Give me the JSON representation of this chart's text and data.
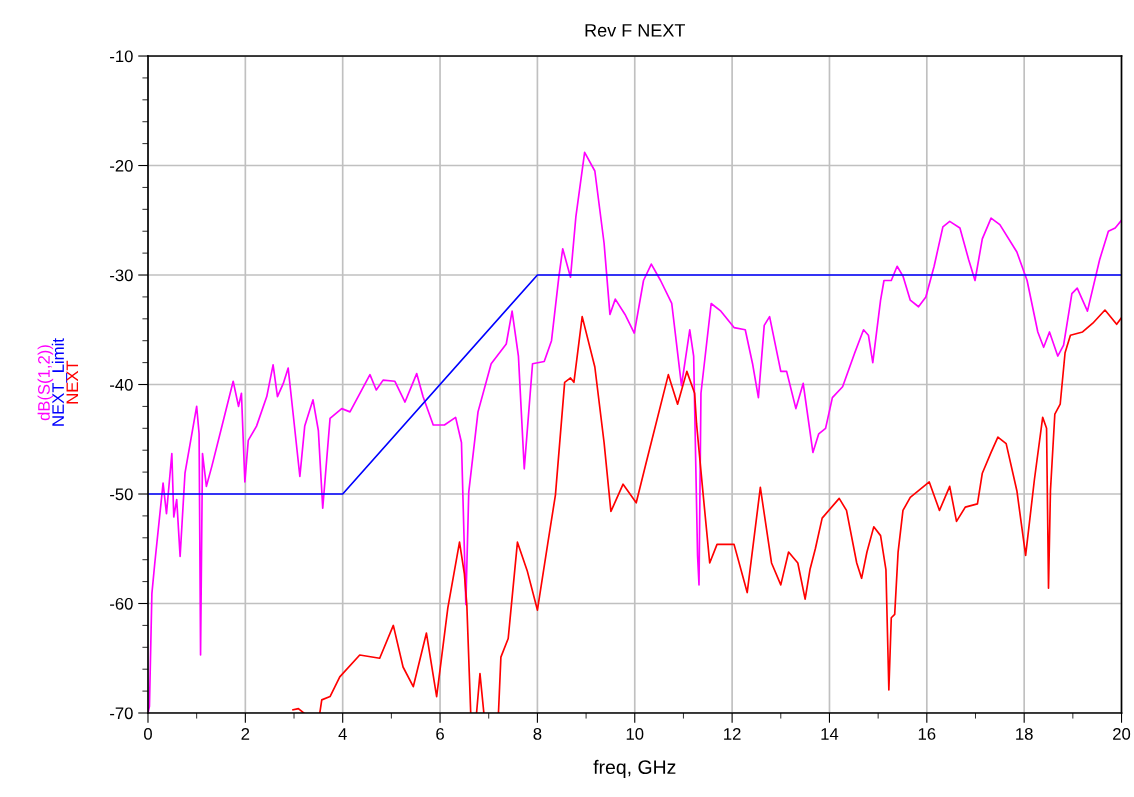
{
  "chart_data": {
    "type": "line",
    "title": "Rev F NEXT",
    "xlabel": "freq, GHz",
    "xlim": [
      0,
      20
    ],
    "xticks": [
      0,
      {
        "value": 1,
        "label": null
      },
      2,
      {
        "value": 3,
        "label": null
      },
      4,
      {
        "value": 5,
        "label": null
      },
      6,
      {
        "value": 7,
        "label": null
      },
      8,
      {
        "value": 9,
        "label": null
      },
      10,
      {
        "value": 11,
        "label": null
      },
      12,
      {
        "value": 13,
        "label": null
      },
      14,
      {
        "value": 15,
        "label": null
      },
      16,
      {
        "value": 17,
        "label": null
      },
      18,
      {
        "value": 19,
        "label": null
      },
      20
    ],
    "ylim": [
      -70,
      -10
    ],
    "yticks": [
      -70,
      {
        "value": -68,
        "label": null
      },
      {
        "value": -66,
        "label": null
      },
      {
        "value": -64,
        "label": null
      },
      {
        "value": -62,
        "label": null
      },
      -60,
      {
        "value": -58,
        "label": null
      },
      {
        "value": -56,
        "label": null
      },
      {
        "value": -54,
        "label": null
      },
      {
        "value": -52,
        "label": null
      },
      -50,
      {
        "value": -48,
        "label": null
      },
      {
        "value": -46,
        "label": null
      },
      {
        "value": -44,
        "label": null
      },
      {
        "value": -42,
        "label": null
      },
      -40,
      {
        "value": -38,
        "label": null
      },
      {
        "value": -36,
        "label": null
      },
      {
        "value": -34,
        "label": null
      },
      {
        "value": -32,
        "label": null
      },
      -30,
      {
        "value": -28,
        "label": null
      },
      {
        "value": -26,
        "label": null
      },
      {
        "value": -24,
        "label": null
      },
      {
        "value": -22,
        "label": null
      },
      -20,
      {
        "value": -18,
        "label": null
      },
      {
        "value": -16,
        "label": null
      },
      {
        "value": -14,
        "label": null
      },
      {
        "value": -12,
        "label": null
      },
      -10
    ],
    "grid": true,
    "line_style": "solid",
    "marker": "none",
    "series": [
      {
        "name": "dB(S(1,2))",
        "color": "#ff00ff",
        "x": [
          0.0,
          0.03,
          0.08,
          0.14,
          0.31,
          0.38,
          0.49,
          0.53,
          0.59,
          0.66,
          0.76,
          1.0,
          1.05,
          1.08,
          1.12,
          1.2,
          1.31,
          1.48,
          1.75,
          1.86,
          1.92,
          1.99,
          2.06,
          2.23,
          2.44,
          2.57,
          2.66,
          2.78,
          2.88,
          2.98,
          3.12,
          3.22,
          3.39,
          3.5,
          3.59,
          3.74,
          3.98,
          4.15,
          4.56,
          4.69,
          4.83,
          5.07,
          5.28,
          5.52,
          5.65,
          5.86,
          6.09,
          6.32,
          6.44,
          6.53,
          6.59,
          6.78,
          7.05,
          7.36,
          7.48,
          7.61,
          7.73,
          7.9,
          8.14,
          8.29,
          8.44,
          8.52,
          8.68,
          8.79,
          8.97,
          9.18,
          9.37,
          9.49,
          9.6,
          9.8,
          9.99,
          10.18,
          10.34,
          10.53,
          10.76,
          10.96,
          11.13,
          11.21,
          11.29,
          11.32,
          11.36,
          11.57,
          11.77,
          12.04,
          12.27,
          12.42,
          12.54,
          12.66,
          12.77,
          13.0,
          13.12,
          13.31,
          13.46,
          13.66,
          13.78,
          13.92,
          14.06,
          14.27,
          14.52,
          14.7,
          14.8,
          14.89,
          15.05,
          15.12,
          15.27,
          15.39,
          15.51,
          15.66,
          15.83,
          15.98,
          16.15,
          16.33,
          16.47,
          16.68,
          16.86,
          16.99,
          17.14,
          17.32,
          17.5,
          17.85,
          18.06,
          18.28,
          18.4,
          18.52,
          18.69,
          18.81,
          18.98,
          19.09,
          19.3,
          19.55,
          19.73,
          19.87,
          20.0
        ],
        "values": [
          -70,
          -69.4,
          -59.1,
          -56.3,
          -49,
          -51.8,
          -46.3,
          -52.1,
          -50.5,
          -55.7,
          -48.1,
          -42,
          -44.5,
          -64.7,
          -46.3,
          -49.3,
          -47.5,
          -44.5,
          -39.7,
          -42,
          -40.8,
          -48.9,
          -45.1,
          -43.8,
          -41.1,
          -38.2,
          -41.1,
          -39.9,
          -38.5,
          -42.6,
          -48.4,
          -43.8,
          -41.4,
          -44.2,
          -51.3,
          -43.1,
          -42.2,
          -42.5,
          -39.1,
          -40.5,
          -39.6,
          -39.7,
          -41.6,
          -39,
          -41.1,
          -43.7,
          -43.7,
          -43,
          -45.3,
          -60.1,
          -49.8,
          -42.5,
          -38.1,
          -36.3,
          -33.3,
          -37.4,
          -47.7,
          -38.1,
          -37.9,
          -36,
          -30.2,
          -27.6,
          -30.2,
          -24.7,
          -18.8,
          -20.5,
          -27.1,
          -33.6,
          -32.2,
          -33.6,
          -35.3,
          -30.5,
          -29,
          -30.5,
          -32.6,
          -40.1,
          -35,
          -37.4,
          -55.6,
          -58.3,
          -40.8,
          -32.6,
          -33.3,
          -34.8,
          -35,
          -38.1,
          -41.2,
          -34.6,
          -33.8,
          -38.8,
          -38.8,
          -42.2,
          -39.9,
          -46.2,
          -44.5,
          -44,
          -41.2,
          -40.2,
          -37.1,
          -35,
          -35.5,
          -38,
          -32.3,
          -30.5,
          -30.5,
          -29.2,
          -30.1,
          -32.3,
          -32.9,
          -32,
          -29.2,
          -25.6,
          -25.1,
          -25.7,
          -28.6,
          -30.5,
          -26.7,
          -24.8,
          -25.4,
          -27.9,
          -30.5,
          -35.2,
          -36.6,
          -35.2,
          -37.4,
          -36.4,
          -31.7,
          -31.2,
          -33.3,
          -28.6,
          -26.0,
          -25.7,
          -25.0
        ]
      },
      {
        "name": "NEXT_Limit",
        "color": "#0000ff",
        "x": [
          0,
          4,
          8,
          20
        ],
        "values": [
          -50,
          -50,
          -30,
          -30
        ]
      },
      {
        "name": "NEXT",
        "color": "#ff0000",
        "x": [
          2.98,
          3.09,
          3.2,
          3.35,
          3.53,
          3.57,
          3.74,
          3.94,
          4.35,
          4.76,
          5.04,
          5.24,
          5.45,
          5.72,
          5.93,
          6.16,
          6.4,
          6.5,
          6.55,
          6.63,
          6.7,
          6.75,
          6.82,
          6.9,
          7.05,
          7.2,
          7.25,
          7.4,
          7.59,
          7.79,
          8.0,
          8.21,
          8.37,
          8.56,
          8.68,
          8.75,
          8.92,
          9.18,
          9.37,
          9.51,
          9.76,
          10.03,
          10.22,
          10.69,
          10.88,
          11.07,
          11.23,
          11.27,
          11.32,
          11.4,
          11.54,
          11.69,
          12.04,
          12.31,
          12.58,
          12.81,
          13.0,
          13.16,
          13.35,
          13.5,
          13.6,
          13.71,
          13.85,
          14.2,
          14.35,
          14.56,
          14.66,
          14.77,
          14.91,
          15.05,
          15.16,
          15.22,
          15.27,
          15.34,
          15.41,
          15.51,
          15.66,
          16.05,
          16.26,
          16.47,
          16.61,
          16.79,
          17.04,
          17.14,
          17.32,
          17.46,
          17.63,
          17.85,
          18.03,
          18.21,
          18.38,
          18.46,
          18.5,
          18.54,
          18.63,
          18.74,
          18.84,
          18.95,
          19.2,
          19.41,
          19.66,
          19.9,
          20.0
        ],
        "values": [
          -69.7,
          -69.6,
          -70,
          null,
          -70,
          -68.8,
          -68.5,
          -66.7,
          -64.7,
          -65,
          -62,
          -65.8,
          -67.6,
          -62.7,
          -68.5,
          -60.4,
          -54.4,
          -57.3,
          -60.1,
          -70,
          null,
          -70,
          -66.4,
          -70,
          null,
          -70,
          -64.9,
          -63.2,
          -54.4,
          -57,
          -60.6,
          -54.6,
          -50.1,
          -39.8,
          -39.4,
          -39.8,
          -33.8,
          -38.4,
          -45.3,
          -51.6,
          -49.1,
          -50.8,
          -47.4,
          -39.1,
          -41.8,
          -38.8,
          -40.8,
          -43.6,
          -46,
          -49.8,
          -56.3,
          -54.6,
          -54.6,
          -59,
          -49.4,
          -56.3,
          -58.3,
          -55.3,
          -56.3,
          -59.6,
          -56.9,
          -55,
          -52.2,
          -50.4,
          -51.5,
          -56.3,
          -57.7,
          -55.3,
          -53,
          -53.8,
          -56.9,
          -67.9,
          -61.3,
          -61,
          -55.3,
          -51.5,
          -50.3,
          -48.9,
          -51.5,
          -49.3,
          -52.5,
          -51.2,
          -50.9,
          -48.1,
          -46.2,
          -44.8,
          -45.4,
          -49.7,
          -55.6,
          -48.7,
          -43,
          -44,
          -58.6,
          -49.7,
          -42.7,
          -41.8,
          -37.1,
          -35.5,
          -35.2,
          -34.4,
          -33.2,
          -34.5,
          -33.9
        ]
      }
    ]
  }
}
